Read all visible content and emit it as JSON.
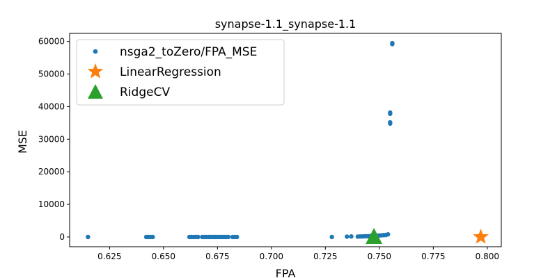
{
  "chart_data": {
    "type": "scatter",
    "title": "synapse-1.1_synapse-1.1",
    "xlabel": "FPA",
    "ylabel": "MSE",
    "xlim": [
      0.6065,
      0.8065
    ],
    "ylim": [
      -3000,
      62500
    ],
    "xticks": [
      0.625,
      0.65,
      0.675,
      0.7,
      0.725,
      0.75,
      0.775,
      0.8
    ],
    "xtick_labels": [
      "0.625",
      "0.650",
      "0.675",
      "0.700",
      "0.725",
      "0.750",
      "0.775",
      "0.800"
    ],
    "yticks": [
      0,
      10000,
      20000,
      30000,
      40000,
      50000,
      60000
    ],
    "ytick_labels": [
      "0",
      "10000",
      "20000",
      "30000",
      "40000",
      "50000",
      "60000"
    ],
    "legend_position": "upper-left",
    "series": [
      {
        "name": "nsga2_toZero/FPA_MSE",
        "marker": "circle",
        "color": "#1f77b4",
        "x": [
          0.615,
          0.642,
          0.643,
          0.644,
          0.645,
          0.662,
          0.663,
          0.664,
          0.665,
          0.666,
          0.668,
          0.669,
          0.67,
          0.671,
          0.672,
          0.673,
          0.674,
          0.675,
          0.676,
          0.677,
          0.678,
          0.679,
          0.68,
          0.682,
          0.683,
          0.684,
          0.728,
          0.735,
          0.737,
          0.74,
          0.741,
          0.742,
          0.743,
          0.744,
          0.745,
          0.746,
          0.748,
          0.749,
          0.75,
          0.751,
          0.752,
          0.753,
          0.754,
          0.755,
          0.755,
          0.755,
          0.755,
          0.756,
          0.756
        ],
        "y": [
          0,
          0,
          0,
          0,
          0,
          0,
          0,
          0,
          0,
          0,
          0,
          0,
          0,
          0,
          0,
          0,
          0,
          0,
          0,
          0,
          0,
          0,
          0,
          0,
          0,
          0,
          0,
          100,
          150,
          100,
          150,
          150,
          200,
          200,
          250,
          300,
          350,
          400,
          450,
          500,
          550,
          600,
          800,
          34800,
          35200,
          37800,
          38200,
          59200,
          59500
        ]
      },
      {
        "name": "LinearRegression",
        "marker": "star",
        "color": "#ff7f0e",
        "x": [
          0.797
        ],
        "y": [
          0
        ]
      },
      {
        "name": "RidgeCV",
        "marker": "triangle",
        "color": "#2ca02c",
        "x": [
          0.7475
        ],
        "y": [
          200
        ]
      }
    ]
  }
}
